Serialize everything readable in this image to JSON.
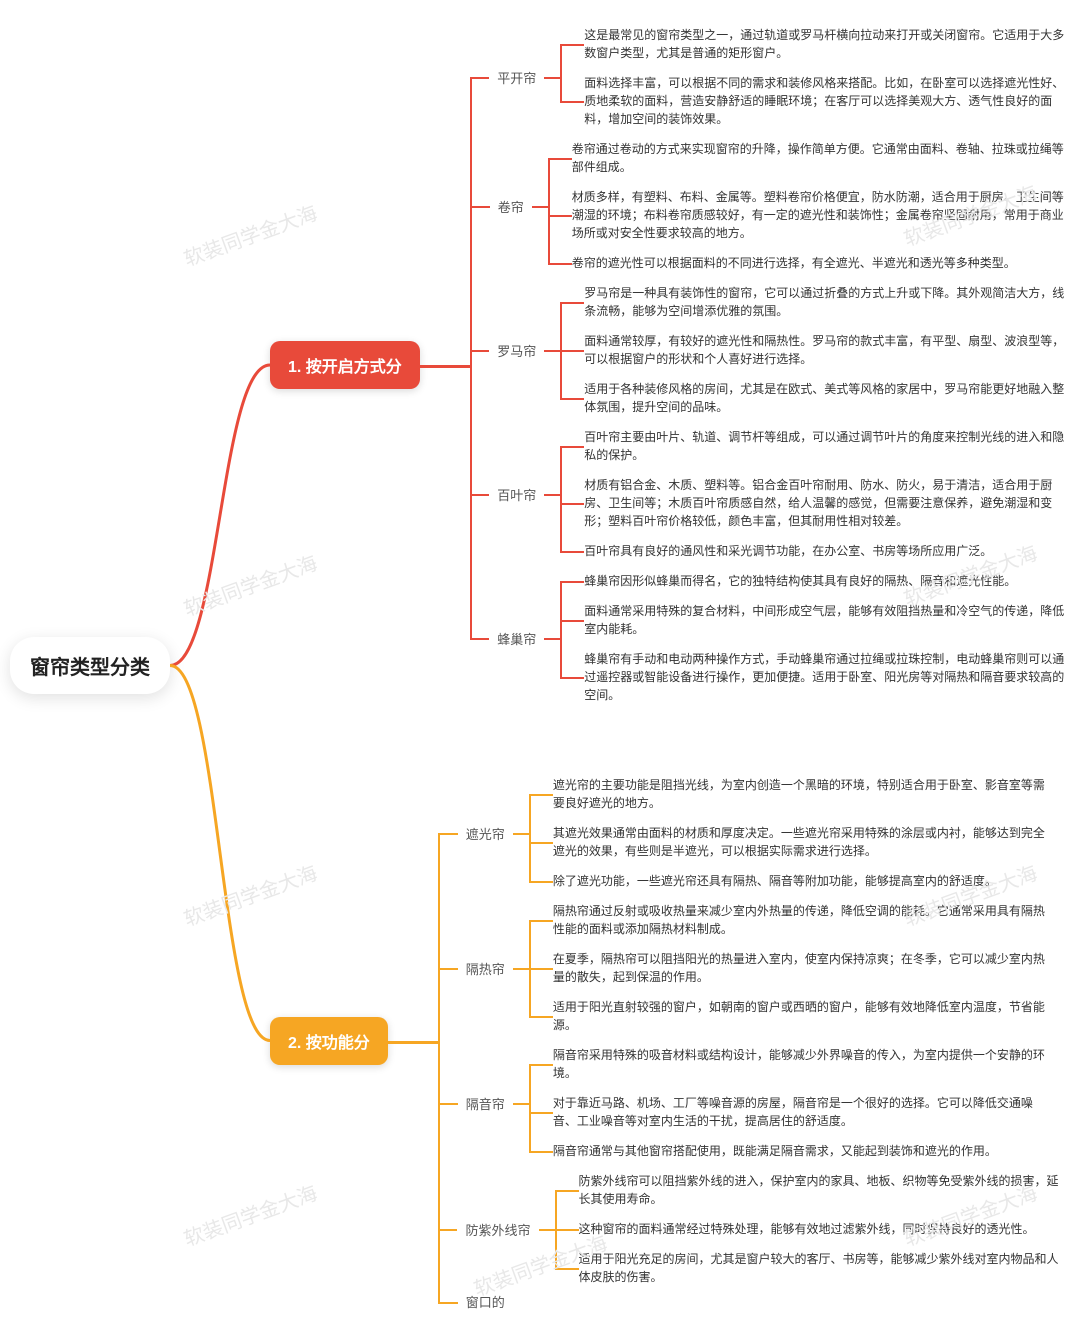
{
  "watermark_text": "软装同学金大海",
  "font": {
    "root_size": 20,
    "branch_size": 16,
    "sub_size": 13,
    "leaf_size": 12
  },
  "colors": {
    "root_bg": "#ffffff",
    "root_text": "#222222",
    "branch1_bg": "#e84a3a",
    "branch1_line": "#e84a3a",
    "branch2_bg": "#f6a623",
    "branch2_line": "#f6a623",
    "leaf_text": "#333333",
    "sub_text": "#555555"
  },
  "root": {
    "label": "窗帘类型分类"
  },
  "branches": [
    {
      "label": "1. 按开启方式分",
      "color": "#e84a3a",
      "children": [
        {
          "label": "平开帘",
          "leaves": [
            "这是最常见的窗帘类型之一，通过轨道或罗马杆横向拉动来打开或关闭窗帘。它适用于大多数窗户类型，尤其是普通的矩形窗户。",
            "面料选择丰富，可以根据不同的需求和装修风格来搭配。比如，在卧室可以选择遮光性好、质地柔软的面料，营造安静舒适的睡眠环境；在客厅可以选择美观大方、透气性良好的面料，增加空间的装饰效果。"
          ]
        },
        {
          "label": "卷帘",
          "leaves": [
            "卷帘通过卷动的方式来实现窗帘的升降，操作简单方便。它通常由面料、卷轴、拉珠或拉绳等部件组成。",
            "材质多样，有塑料、布料、金属等。塑料卷帘价格便宜，防水防潮，适合用于厨房、卫生间等潮湿的环境；布料卷帘质感较好，有一定的遮光性和装饰性；金属卷帘坚固耐用，常用于商业场所或对安全性要求较高的地方。",
            "卷帘的遮光性可以根据面料的不同进行选择，有全遮光、半遮光和透光等多种类型。"
          ]
        },
        {
          "label": "罗马帘",
          "leaves": [
            "罗马帘是一种具有装饰性的窗帘，它可以通过折叠的方式上升或下降。其外观简洁大方，线条流畅，能够为空间增添优雅的氛围。",
            "面料通常较厚，有较好的遮光性和隔热性。罗马帘的款式丰富，有平型、扇型、波浪型等，可以根据窗户的形状和个人喜好进行选择。",
            "适用于各种装修风格的房间，尤其是在欧式、美式等风格的家居中，罗马帘能更好地融入整体氛围，提升空间的品味。"
          ]
        },
        {
          "label": "百叶帘",
          "leaves": [
            "百叶帘主要由叶片、轨道、调节杆等组成，可以通过调节叶片的角度来控制光线的进入和隐私的保护。",
            "材质有铝合金、木质、塑料等。铝合金百叶帘耐用、防水、防火，易于清洁，适合用于厨房、卫生间等；木质百叶帘质感自然，给人温馨的感觉，但需要注意保养，避免潮湿和变形；塑料百叶帘价格较低，颜色丰富，但其耐用性相对较差。",
            "百叶帘具有良好的通风性和采光调节功能，在办公室、书房等场所应用广泛。"
          ]
        },
        {
          "label": "蜂巢帘",
          "leaves": [
            "蜂巢帘因形似蜂巢而得名，它的独特结构使其具有良好的隔热、隔音和遮光性能。",
            "面料通常采用特殊的复合材料，中间形成空气层，能够有效阻挡热量和冷空气的传递，降低室内能耗。",
            "蜂巢帘有手动和电动两种操作方式，手动蜂巢帘通过拉绳或拉珠控制，电动蜂巢帘则可以通过遥控器或智能设备进行操作，更加便捷。适用于卧室、阳光房等对隔热和隔音要求较高的空间。"
          ]
        }
      ]
    },
    {
      "label": "2. 按功能分",
      "color": "#f6a623",
      "children": [
        {
          "label": "遮光帘",
          "leaves": [
            "遮光帘的主要功能是阻挡光线，为室内创造一个黑暗的环境，特别适合用于卧室、影音室等需要良好遮光的地方。",
            "其遮光效果通常由面料的材质和厚度决定。一些遮光帘采用特殊的涂层或内衬，能够达到完全遮光的效果，有些则是半遮光，可以根据实际需求进行选择。",
            "除了遮光功能，一些遮光帘还具有隔热、隔音等附加功能，能够提高室内的舒适度。"
          ]
        },
        {
          "label": "隔热帘",
          "leaves": [
            "隔热帘通过反射或吸收热量来减少室内外热量的传递，降低空调的能耗。它通常采用具有隔热性能的面料或添加隔热材料制成。",
            "在夏季，隔热帘可以阻挡阳光的热量进入室内，使室内保持凉爽；在冬季，它可以减少室内热量的散失，起到保温的作用。",
            "适用于阳光直射较强的窗户，如朝南的窗户或西晒的窗户，能够有效地降低室内温度，节省能源。"
          ]
        },
        {
          "label": "隔音帘",
          "leaves": [
            "隔音帘采用特殊的吸音材料或结构设计，能够减少外界噪音的传入，为室内提供一个安静的环境。",
            "对于靠近马路、机场、工厂等噪音源的房屋，隔音帘是一个很好的选择。它可以降低交通噪音、工业噪音等对室内生活的干扰，提高居住的舒适度。",
            "隔音帘通常与其他窗帘搭配使用，既能满足隔音需求，又能起到装饰和遮光的作用。"
          ]
        },
        {
          "label": "防紫外线帘",
          "leaves": [
            "防紫外线帘可以阻挡紫外线的进入，保护室内的家具、地板、织物等免受紫外线的损害，延长其使用寿命。",
            "这种窗帘的面料通常经过特殊处理，能够有效地过滤紫外线，同时保持良好的透光性。",
            "适用于阳光充足的房间，尤其是窗户较大的客厅、书房等，能够减少紫外线对室内物品和人体皮肤的伤害。"
          ]
        },
        {
          "label": "窗口的",
          "leaves": []
        }
      ]
    }
  ]
}
